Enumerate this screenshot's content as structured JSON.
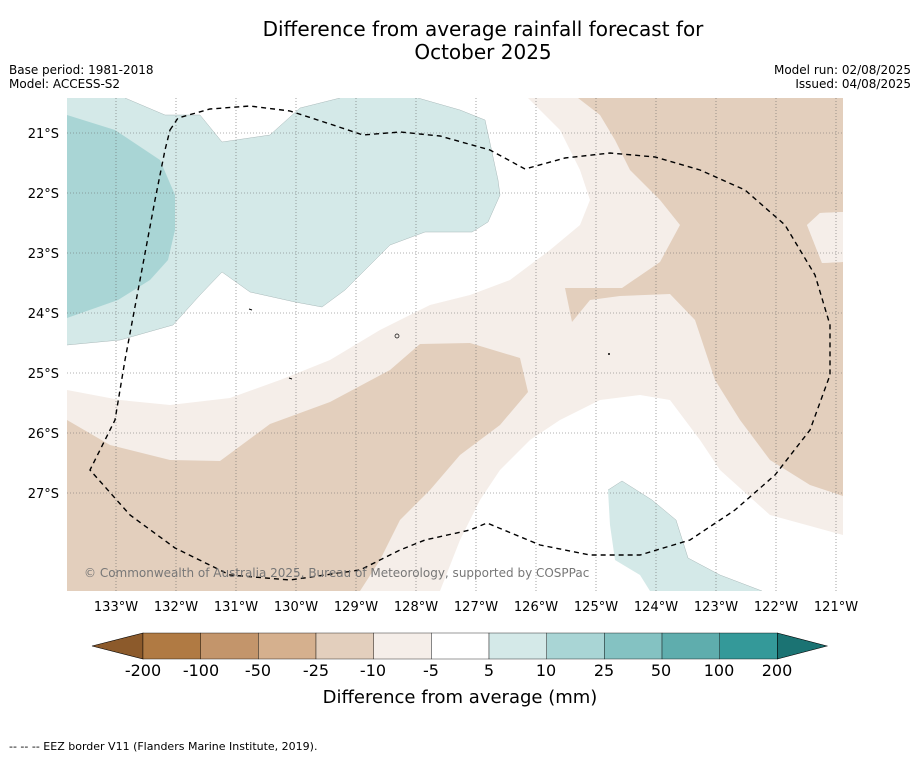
{
  "title_line1": "Difference from average rainfall forecast for",
  "title_line2": "October 2025",
  "meta_left": [
    "Base period: 1981-2018",
    "Model: ACCESS-S2"
  ],
  "meta_right": [
    "Model run: 02/08/2025",
    "Issued: 04/08/2025"
  ],
  "copyright": "© Commonwealth of Australia 2025, Bureau of Meteorology, supported by COSPPac",
  "footnote": "-- -- -- EEZ border V11 (Flanders Marine Institute, 2019).",
  "map": {
    "lat_labels": [
      "21°S",
      "22°S",
      "23°S",
      "24°S",
      "25°S",
      "26°S",
      "27°S"
    ],
    "lon_labels": [
      "133°W",
      "132°W",
      "131°W",
      "130°W",
      "129°W",
      "128°W",
      "127°W",
      "126°W",
      "125°W",
      "124°W",
      "123°W",
      "122°W",
      "121°W"
    ]
  },
  "colorbar": {
    "title": "Difference from average (mm)",
    "tick_labels": [
      "-200",
      "-100",
      "-50",
      "-25",
      "-10",
      "-5",
      "5",
      "10",
      "25",
      "50",
      "100",
      "200"
    ],
    "colors": [
      "#8c5a2b",
      "#b07a43",
      "#c3956b",
      "#d5b08e",
      "#e3cfbd",
      "#f5eee9",
      "#ffffff",
      "#d4e9e8",
      "#a9d5d5",
      "#84c2c2",
      "#5fadad",
      "#349999",
      "#1b7373"
    ]
  }
}
